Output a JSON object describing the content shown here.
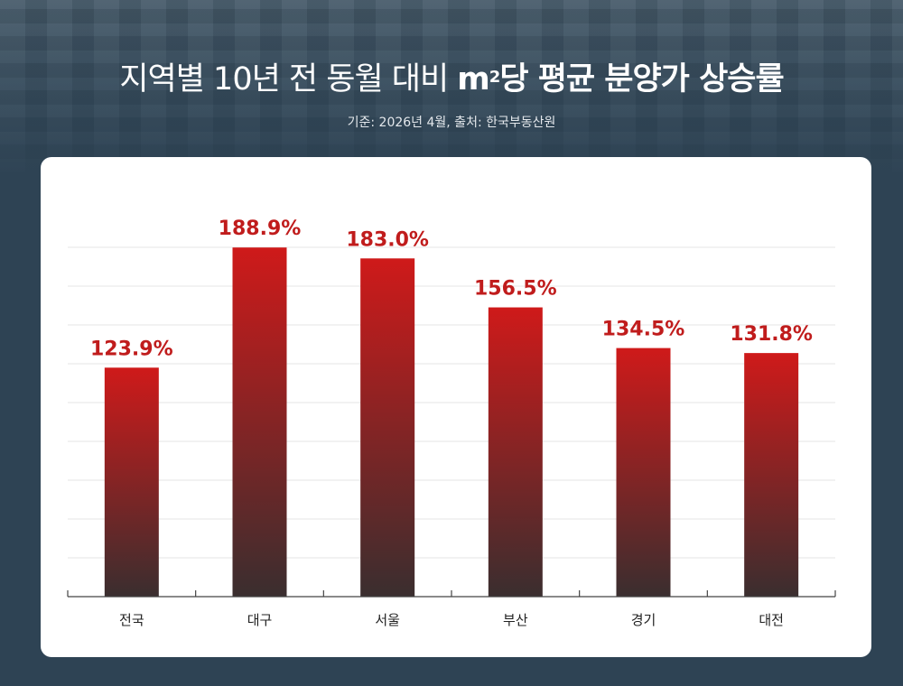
{
  "header": {
    "title_regular": "지역별 10년 전 동월 대비 ",
    "title_bold_unit": "m",
    "title_sup": "2",
    "title_bold_rest": "당 평균 분양가 상승률",
    "subtitle": "기준: 2026년 4월, 출처: 한국부동산원"
  },
  "chart_data": {
    "type": "bar",
    "categories": [
      "전국",
      "대구",
      "서울",
      "부산",
      "경기",
      "대전"
    ],
    "values": [
      123.9,
      188.9,
      183.0,
      156.5,
      134.5,
      131.8
    ],
    "value_labels": [
      "123.9%",
      "188.9%",
      "183.0%",
      "156.5%",
      "134.5%",
      "131.8%"
    ],
    "ylim": [
      0,
      210
    ],
    "grid": true,
    "bar_gradient": {
      "top": "#cf1a1a",
      "bottom": "#3a2e2f"
    },
    "label_color": "#c01c1c",
    "axis_color": "#444444"
  }
}
